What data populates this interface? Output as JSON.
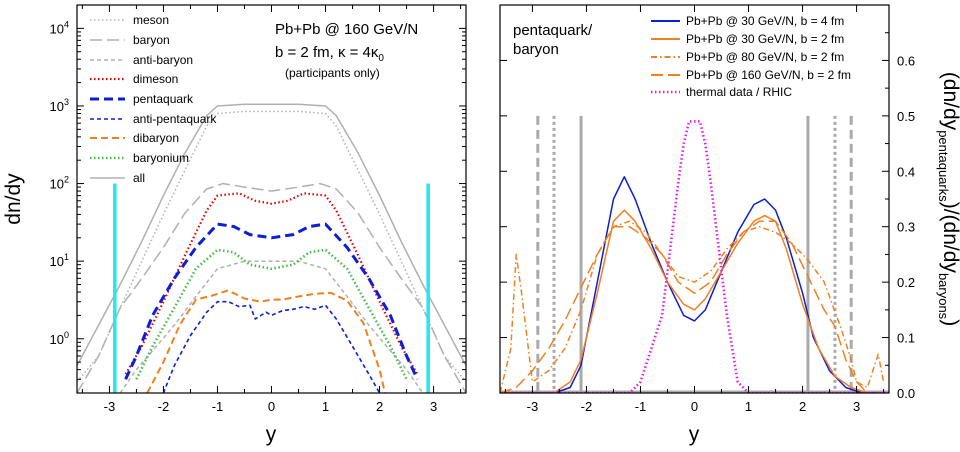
{
  "colors": {
    "meson": "#b0b0b0",
    "baryon": "#b0b0b0",
    "anti_baryon": "#b0b0b0",
    "dimeson": "#e00000",
    "pentaquark": "#0a1fd6",
    "anti_pentaquark": "#0a1fd6",
    "dibaryon": "#f08020",
    "baryonium": "#44bb44",
    "all": "#b0b0b0",
    "cyan": "#22e8f0",
    "magenta": "#e020e0",
    "gray_marker": "#aaaaaa"
  },
  "chart_data": [
    {
      "type": "line",
      "xlabel": "y",
      "ylabel": "dn/dy",
      "yscale": "log",
      "xlim": [
        -3.6,
        3.6
      ],
      "ylim": [
        0.2,
        20000
      ],
      "x_ticks": [
        "-3",
        "-2",
        "-1",
        "0",
        "1",
        "2",
        "3"
      ],
      "y_ticks_exp": [
        "0",
        "1",
        "2",
        "3",
        "4"
      ],
      "y_tick_base": "10",
      "annotation": {
        "line1": "Pb+Pb @ 160 GeV/N",
        "line2": "b = 2 fm, κ = 4κ",
        "line2_sub": "0",
        "line3": "(participants only)"
      },
      "vertical_markers": [
        -2.9,
        2.9
      ],
      "vertical_marker_top": 100,
      "series": [
        {
          "key": "meson",
          "name": "meson",
          "dash": "dot",
          "x": [
            -3.6,
            -3.2,
            -2.8,
            -2.4,
            -2.0,
            -1.6,
            -1.2,
            -1.0,
            -0.5,
            0,
            0.5,
            1.0,
            1.2,
            1.6,
            2.0,
            2.4,
            2.8,
            3.2,
            3.6
          ],
          "y": [
            0.28,
            0.6,
            2.5,
            10,
            40,
            150,
            550,
            800,
            850,
            850,
            850,
            800,
            550,
            150,
            40,
            10,
            2.5,
            0.6,
            0.28
          ]
        },
        {
          "key": "baryon",
          "name": "baryon",
          "dash": "longdash",
          "x": [
            -3.6,
            -3.2,
            -2.8,
            -2.4,
            -2.0,
            -1.6,
            -1.2,
            -0.9,
            -0.5,
            0,
            0.5,
            0.9,
            1.2,
            1.6,
            2.0,
            2.4,
            2.8,
            3.2,
            3.6
          ],
          "y": [
            0.2,
            0.6,
            2.5,
            6,
            15,
            42,
            85,
            100,
            90,
            80,
            90,
            100,
            85,
            42,
            15,
            6,
            2.5,
            0.6,
            0.2
          ]
        },
        {
          "key": "anti_baryon",
          "name": "anti-baryon",
          "dash": "shortdash",
          "x": [
            -2.8,
            -2.5,
            -2.2,
            -1.8,
            -1.4,
            -1.0,
            -0.5,
            0,
            0.5,
            1.0,
            1.4,
            1.8,
            2.2,
            2.5,
            2.8
          ],
          "y": [
            0.2,
            0.4,
            0.7,
            1.5,
            3.5,
            8,
            10,
            10,
            10,
            8,
            3.5,
            1.5,
            0.7,
            0.4,
            0.2
          ]
        },
        {
          "key": "dimeson",
          "name": "dimeson",
          "dash": "dot",
          "width": 2.2,
          "x": [
            -2.7,
            -2.4,
            -2.0,
            -1.6,
            -1.2,
            -1.0,
            -0.6,
            -0.3,
            0,
            0.3,
            0.6,
            1.0,
            1.2,
            1.6,
            2.0,
            2.4,
            2.7
          ],
          "y": [
            0.35,
            0.8,
            3,
            12,
            45,
            70,
            75,
            60,
            55,
            60,
            75,
            70,
            45,
            12,
            3,
            0.8,
            0.35
          ]
        },
        {
          "key": "pentaquark",
          "name": "pentaquark",
          "dash": "pdash",
          "width": 3,
          "x": [
            -2.7,
            -2.5,
            -2.2,
            -1.8,
            -1.4,
            -1.0,
            -0.7,
            -0.4,
            0,
            0.4,
            0.7,
            1.0,
            1.4,
            1.8,
            2.2,
            2.5,
            2.7
          ],
          "y": [
            0.3,
            0.6,
            2,
            6,
            15,
            30,
            28,
            22,
            20,
            22,
            28,
            30,
            15,
            6,
            2,
            0.6,
            0.3
          ]
        },
        {
          "key": "anti_pentaquark",
          "name": "anti-pentaquark",
          "dash": "shortdash",
          "width": 1.6,
          "x": [
            -2.0,
            -1.8,
            -1.5,
            -1.2,
            -1.0,
            -0.8,
            -0.6,
            -0.4,
            -0.3,
            -0.1,
            0,
            0.2,
            0.4,
            0.6,
            0.8,
            1.0,
            1.2,
            1.5,
            1.8,
            2.0
          ],
          "y": [
            0.2,
            0.45,
            1.1,
            2.2,
            3,
            3,
            2.6,
            2.7,
            1.8,
            2.2,
            2,
            2.3,
            2.4,
            2.6,
            2.4,
            2.7,
            1.8,
            0.8,
            0.35,
            0.2
          ]
        },
        {
          "key": "dibaryon",
          "name": "dibaryon",
          "dash": "dash",
          "width": 2,
          "x": [
            -2.3,
            -2.0,
            -1.7,
            -1.4,
            -1.1,
            -0.8,
            -0.5,
            -0.2,
            0,
            0.2,
            0.5,
            0.8,
            1.1,
            1.4,
            1.7,
            2.0,
            2.1
          ],
          "y": [
            0.2,
            0.5,
            1.5,
            3.2,
            3.6,
            4.2,
            3.3,
            3.0,
            3.2,
            3.2,
            3.5,
            3.8,
            3.9,
            3.1,
            1.6,
            0.4,
            0.2
          ]
        },
        {
          "key": "baryonium",
          "name": "baryonium",
          "dash": "dot",
          "width": 2.6,
          "x": [
            -2.5,
            -2.2,
            -1.8,
            -1.4,
            -1.0,
            -0.7,
            -0.4,
            0,
            0.4,
            0.7,
            1.0,
            1.4,
            1.8,
            2.2,
            2.5
          ],
          "y": [
            0.3,
            0.8,
            2.5,
            8,
            14,
            13,
            9,
            8,
            9,
            13,
            14,
            8,
            2.5,
            0.8,
            0.3
          ]
        },
        {
          "key": "all",
          "name": "all",
          "dash": "solid",
          "x": [
            -3.6,
            -3.2,
            -2.8,
            -2.4,
            -2.0,
            -1.6,
            -1.2,
            -1.0,
            -0.5,
            0,
            0.5,
            1.0,
            1.2,
            1.6,
            2.0,
            2.4,
            2.8,
            3.2,
            3.6
          ],
          "y": [
            0.45,
            1.5,
            5,
            18,
            70,
            250,
            750,
            1000,
            1050,
            1050,
            1050,
            1000,
            750,
            250,
            70,
            18,
            5,
            1.5,
            0.45
          ]
        }
      ]
    },
    {
      "type": "line",
      "xlabel": "y",
      "ylabel": "(dn/dy",
      "ylabel_sub1": "pentaquarks",
      "ylabel_mid": ")/(dn/dy",
      "ylabel_sub2": "baryons",
      "ylabel_end": ")",
      "xlim": [
        -3.6,
        3.6
      ],
      "ylim": [
        0,
        0.7
      ],
      "x_ticks": [
        "-3",
        "-2",
        "-1",
        "0",
        "1",
        "2",
        "3"
      ],
      "y_ticks": [
        "0.0",
        "0.1",
        "0.2",
        "0.3",
        "0.4",
        "0.5",
        "0.6"
      ],
      "annotation": {
        "line1": "pentaquark/",
        "line2": "baryon"
      },
      "vertical_markers": [
        {
          "x": -2.9,
          "dash": "dash"
        },
        {
          "x": -2.6,
          "dash": "dot"
        },
        {
          "x": -2.1,
          "dash": "solid"
        },
        {
          "x": 2.1,
          "dash": "solid"
        },
        {
          "x": 2.6,
          "dash": "dot"
        },
        {
          "x": 2.9,
          "dash": "dash"
        }
      ],
      "vertical_marker_top": 0.5,
      "series": [
        {
          "key": "s30b4",
          "name": "Pb+Pb @ 30 GeV/N, b = 4 fm",
          "color_key": "pentaquark",
          "dash": "solid",
          "x": [
            -3.6,
            -3.0,
            -2.6,
            -2.3,
            -2.1,
            -1.8,
            -1.5,
            -1.3,
            -1.1,
            -0.8,
            -0.5,
            -0.2,
            0,
            0.2,
            0.5,
            0.8,
            1.1,
            1.3,
            1.5,
            1.7,
            2.0,
            2.2,
            2.5,
            2.8,
            3.1,
            3.4
          ],
          "y": [
            0,
            0,
            0,
            0.01,
            0.05,
            0.2,
            0.35,
            0.39,
            0.35,
            0.27,
            0.2,
            0.14,
            0.13,
            0.15,
            0.22,
            0.29,
            0.34,
            0.35,
            0.33,
            0.28,
            0.18,
            0.1,
            0.04,
            0.01,
            0,
            0
          ]
        },
        {
          "key": "s30b2",
          "name": "Pb+Pb @ 30 GeV/N, b = 2 fm",
          "color_key": "dibaryon",
          "dash": "solid",
          "x": [
            -3.6,
            -3.0,
            -2.6,
            -2.3,
            -2.1,
            -1.8,
            -1.5,
            -1.3,
            -1.1,
            -0.8,
            -0.5,
            -0.2,
            0,
            0.2,
            0.5,
            0.8,
            1.1,
            1.3,
            1.5,
            1.7,
            2.0,
            2.3,
            2.6,
            2.9,
            3.2
          ],
          "y": [
            0,
            0,
            0,
            0.02,
            0.06,
            0.18,
            0.31,
            0.33,
            0.31,
            0.26,
            0.2,
            0.16,
            0.15,
            0.17,
            0.22,
            0.27,
            0.31,
            0.32,
            0.31,
            0.26,
            0.16,
            0.08,
            0.03,
            0.01,
            0
          ]
        },
        {
          "key": "s80b2",
          "name": "Pb+Pb @ 80 GeV/N, b = 2 fm",
          "color_key": "dibaryon",
          "dash": "dashdot",
          "x": [
            -3.6,
            -3.4,
            -3.3,
            -3.2,
            -3.0,
            -2.7,
            -2.4,
            -2.1,
            -1.8,
            -1.5,
            -1.2,
            -0.9,
            -0.6,
            -0.3,
            0,
            0.3,
            0.6,
            0.9,
            1.2,
            1.5,
            1.8,
            2.1,
            2.4,
            2.7,
            2.9,
            3.0,
            3.2,
            3.4,
            3.5
          ],
          "y": [
            0,
            0.08,
            0.25,
            0.18,
            0.02,
            0.04,
            0.08,
            0.15,
            0.25,
            0.3,
            0.31,
            0.29,
            0.25,
            0.21,
            0.2,
            0.22,
            0.26,
            0.29,
            0.3,
            0.29,
            0.27,
            0.24,
            0.2,
            0.12,
            0.06,
            0.02,
            0.01,
            0.07,
            0.02
          ]
        },
        {
          "key": "s160b2",
          "name": "Pb+Pb @ 160 GeV/N, b = 2 fm",
          "color_key": "dibaryon",
          "dash": "longdash",
          "x": [
            -3.6,
            -3.3,
            -3.0,
            -2.7,
            -2.4,
            -2.1,
            -1.8,
            -1.5,
            -1.2,
            -0.9,
            -0.6,
            -0.3,
            0,
            0.3,
            0.6,
            0.9,
            1.2,
            1.5,
            1.8,
            2.1,
            2.4,
            2.6,
            2.8,
            3.0,
            3.2,
            3.4
          ],
          "y": [
            0,
            0.01,
            0.04,
            0.08,
            0.13,
            0.19,
            0.25,
            0.3,
            0.3,
            0.28,
            0.25,
            0.2,
            0.18,
            0.2,
            0.25,
            0.29,
            0.31,
            0.31,
            0.27,
            0.21,
            0.15,
            0.12,
            0.06,
            0.02,
            0,
            0
          ]
        },
        {
          "key": "thermal",
          "name": "thermal data / RHIC",
          "color_key": "magenta",
          "dash": "dot",
          "width": 2.6,
          "x": [
            -3.6,
            -1.2,
            -1.0,
            -0.8,
            -0.6,
            -0.5,
            -0.4,
            -0.3,
            -0.2,
            -0.1,
            0,
            0.1,
            0.2,
            0.3,
            0.4,
            0.5,
            0.6,
            0.7,
            0.8,
            1.0,
            3.6
          ],
          "y": [
            0,
            0,
            0.02,
            0.08,
            0.14,
            0.22,
            0.3,
            0.38,
            0.45,
            0.49,
            0.49,
            0.49,
            0.45,
            0.38,
            0.3,
            0.22,
            0.14,
            0.08,
            0.02,
            0,
            0
          ]
        }
      ]
    }
  ]
}
